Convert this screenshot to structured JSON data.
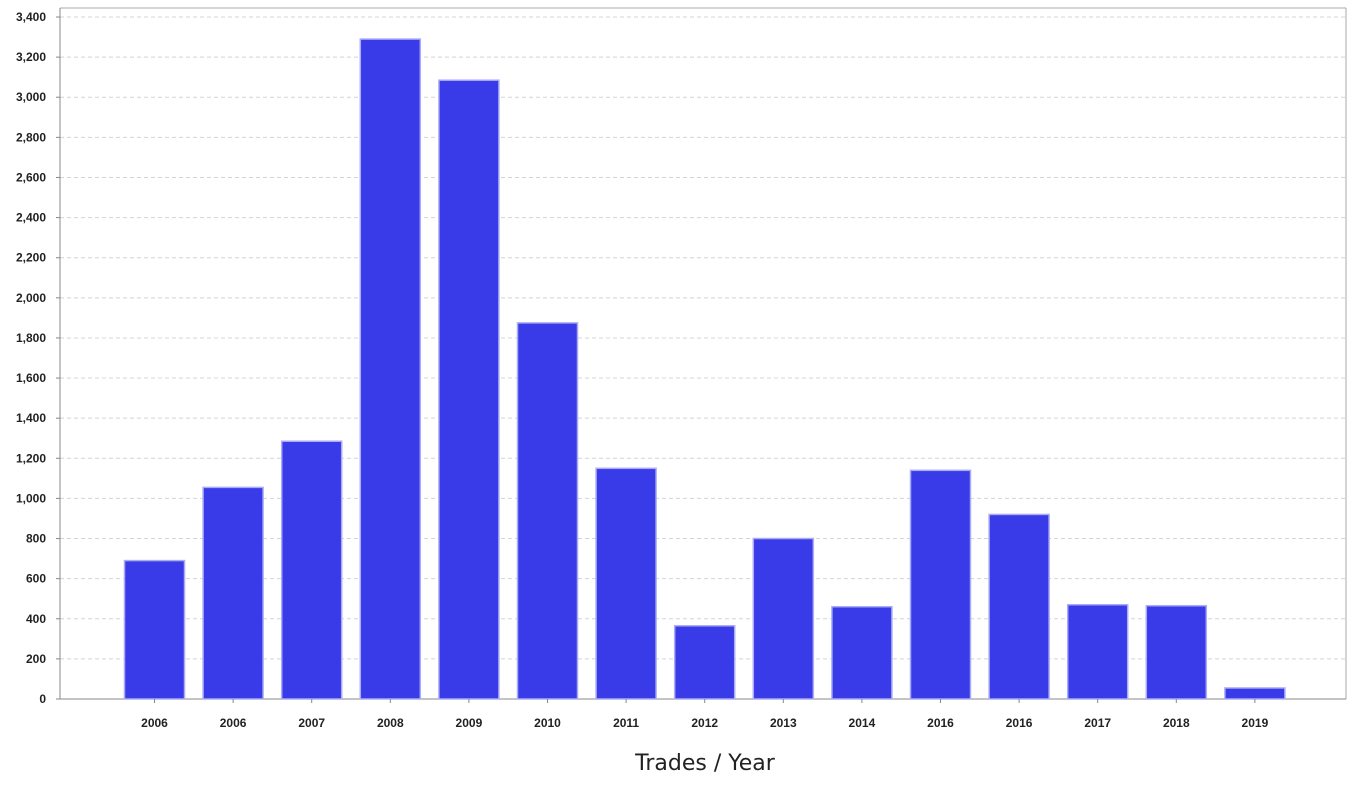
{
  "chart_data": {
    "type": "bar",
    "title": "",
    "xlabel": "Trades / Year",
    "ylabel": "",
    "categories": [
      "2006",
      "2006",
      "2007",
      "2008",
      "2009",
      "2010",
      "2011",
      "2012",
      "2013",
      "2014",
      "2016",
      "2016",
      "2017",
      "2018",
      "2019"
    ],
    "values": [
      690,
      1055,
      1285,
      3290,
      3085,
      1875,
      1150,
      365,
      800,
      460,
      1140,
      920,
      470,
      465,
      55
    ],
    "ylim": [
      0,
      3400
    ],
    "yticks": [
      0,
      200,
      400,
      600,
      800,
      1000,
      1200,
      1400,
      1600,
      1800,
      2000,
      2200,
      2400,
      2600,
      2800,
      3000,
      3200,
      3400
    ],
    "ytick_labels": [
      "0",
      "200",
      "400",
      "600",
      "800",
      "1,000",
      "1,200",
      "1,400",
      "1,600",
      "1,800",
      "2,000",
      "2,200",
      "2,400",
      "2,600",
      "2,800",
      "3,000",
      "3,200",
      "3,400"
    ],
    "grid": true,
    "legend": "none",
    "colors": {
      "bar_fill": "#3a3be8",
      "bar_edge": "#a9abf4",
      "grid": "#d4d4d4",
      "axis": "#888888",
      "frame": "#aaaaaa"
    }
  }
}
